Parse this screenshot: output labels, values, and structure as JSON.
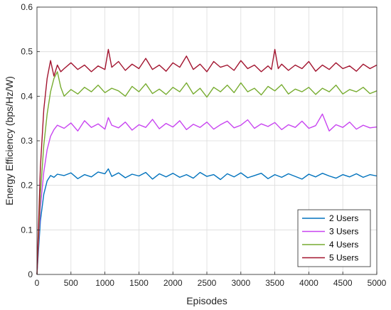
{
  "chart_data": {
    "type": "line",
    "title": "",
    "xlabel": "Episodes",
    "ylabel": "Energy Efficiency (bps/Hz/W)",
    "xlim": [
      0,
      5000
    ],
    "ylim": [
      0,
      0.6
    ],
    "xticks": [
      0,
      500,
      1000,
      1500,
      2000,
      2500,
      3000,
      3500,
      4000,
      4500,
      5000
    ],
    "yticks": [
      0,
      0.1,
      0.2,
      0.3,
      0.4,
      0.5,
      0.6
    ],
    "grid": true,
    "legend_position": "bottom-right",
    "series": [
      {
        "name": "2 Users",
        "color": "#0072BD",
        "x": [
          0,
          50,
          100,
          150,
          200,
          250,
          300,
          400,
          500,
          600,
          700,
          800,
          900,
          1000,
          1050,
          1100,
          1200,
          1300,
          1400,
          1500,
          1600,
          1700,
          1800,
          1900,
          2000,
          2100,
          2200,
          2300,
          2400,
          2500,
          2600,
          2700,
          2800,
          2900,
          3000,
          3100,
          3200,
          3300,
          3400,
          3500,
          3600,
          3700,
          3800,
          3900,
          4000,
          4100,
          4200,
          4300,
          4400,
          4500,
          4600,
          4700,
          4800,
          4900,
          5000
        ],
        "y": [
          0,
          0.12,
          0.18,
          0.21,
          0.222,
          0.218,
          0.225,
          0.222,
          0.228,
          0.215,
          0.224,
          0.219,
          0.23,
          0.226,
          0.237,
          0.22,
          0.228,
          0.217,
          0.225,
          0.221,
          0.229,
          0.214,
          0.226,
          0.219,
          0.227,
          0.218,
          0.224,
          0.216,
          0.229,
          0.22,
          0.224,
          0.213,
          0.226,
          0.219,
          0.228,
          0.217,
          0.222,
          0.227,
          0.215,
          0.224,
          0.218,
          0.226,
          0.22,
          0.214,
          0.225,
          0.219,
          0.227,
          0.221,
          0.216,
          0.224,
          0.219,
          0.226,
          0.218,
          0.224,
          0.221
        ]
      },
      {
        "name": "3 Users",
        "color": "#C844F0",
        "x": [
          0,
          50,
          100,
          150,
          200,
          250,
          300,
          400,
          500,
          600,
          700,
          800,
          900,
          1000,
          1050,
          1100,
          1200,
          1300,
          1400,
          1500,
          1600,
          1700,
          1800,
          1900,
          2000,
          2100,
          2200,
          2300,
          2400,
          2500,
          2600,
          2700,
          2800,
          2900,
          3000,
          3100,
          3200,
          3300,
          3400,
          3500,
          3600,
          3700,
          3800,
          3900,
          4000,
          4100,
          4200,
          4300,
          4400,
          4500,
          4600,
          4700,
          4800,
          4900,
          5000
        ],
        "y": [
          0,
          0.15,
          0.23,
          0.28,
          0.31,
          0.325,
          0.335,
          0.328,
          0.34,
          0.322,
          0.345,
          0.33,
          0.338,
          0.326,
          0.352,
          0.335,
          0.329,
          0.342,
          0.324,
          0.336,
          0.33,
          0.348,
          0.327,
          0.339,
          0.331,
          0.345,
          0.325,
          0.337,
          0.33,
          0.342,
          0.326,
          0.336,
          0.344,
          0.329,
          0.335,
          0.347,
          0.328,
          0.338,
          0.332,
          0.341,
          0.325,
          0.336,
          0.33,
          0.344,
          0.328,
          0.334,
          0.36,
          0.322,
          0.336,
          0.33,
          0.342,
          0.326,
          0.335,
          0.329,
          0.331
        ]
      },
      {
        "name": "4 Users",
        "color": "#77AC30",
        "x": [
          0,
          50,
          100,
          150,
          200,
          250,
          300,
          350,
          400,
          500,
          600,
          700,
          800,
          900,
          1000,
          1100,
          1200,
          1300,
          1400,
          1500,
          1600,
          1700,
          1800,
          1900,
          2000,
          2100,
          2200,
          2300,
          2400,
          2500,
          2600,
          2700,
          2800,
          2900,
          3000,
          3100,
          3200,
          3300,
          3400,
          3500,
          3600,
          3700,
          3800,
          3900,
          4000,
          4100,
          4200,
          4300,
          4400,
          4500,
          4600,
          4700,
          4800,
          4900,
          5000
        ],
        "y": [
          0,
          0.18,
          0.29,
          0.36,
          0.41,
          0.44,
          0.455,
          0.42,
          0.4,
          0.415,
          0.405,
          0.42,
          0.41,
          0.425,
          0.408,
          0.418,
          0.412,
          0.4,
          0.422,
          0.41,
          0.428,
          0.406,
          0.416,
          0.404,
          0.42,
          0.41,
          0.43,
          0.405,
          0.418,
          0.398,
          0.42,
          0.41,
          0.425,
          0.408,
          0.43,
          0.41,
          0.418,
          0.403,
          0.422,
          0.412,
          0.426,
          0.405,
          0.416,
          0.41,
          0.42,
          0.404,
          0.418,
          0.41,
          0.425,
          0.405,
          0.415,
          0.41,
          0.42,
          0.406,
          0.412
        ]
      },
      {
        "name": "5 Users",
        "color": "#A2142F",
        "x": [
          0,
          50,
          100,
          150,
          200,
          250,
          300,
          350,
          400,
          500,
          600,
          700,
          800,
          900,
          1000,
          1050,
          1100,
          1200,
          1300,
          1400,
          1500,
          1600,
          1700,
          1800,
          1900,
          2000,
          2100,
          2200,
          2300,
          2400,
          2500,
          2600,
          2700,
          2800,
          2900,
          3000,
          3100,
          3200,
          3300,
          3400,
          3450,
          3500,
          3550,
          3600,
          3700,
          3800,
          3900,
          4000,
          4100,
          4200,
          4300,
          4400,
          4500,
          4600,
          4700,
          4800,
          4900,
          5000
        ],
        "y": [
          0,
          0.24,
          0.37,
          0.44,
          0.48,
          0.445,
          0.47,
          0.455,
          0.462,
          0.475,
          0.46,
          0.47,
          0.455,
          0.468,
          0.46,
          0.505,
          0.465,
          0.478,
          0.458,
          0.472,
          0.462,
          0.485,
          0.46,
          0.47,
          0.456,
          0.475,
          0.465,
          0.49,
          0.46,
          0.472,
          0.455,
          0.478,
          0.465,
          0.47,
          0.458,
          0.48,
          0.462,
          0.47,
          0.455,
          0.468,
          0.46,
          0.505,
          0.462,
          0.472,
          0.458,
          0.47,
          0.462,
          0.478,
          0.456,
          0.47,
          0.46,
          0.475,
          0.462,
          0.468,
          0.456,
          0.472,
          0.462,
          0.47
        ]
      }
    ]
  }
}
